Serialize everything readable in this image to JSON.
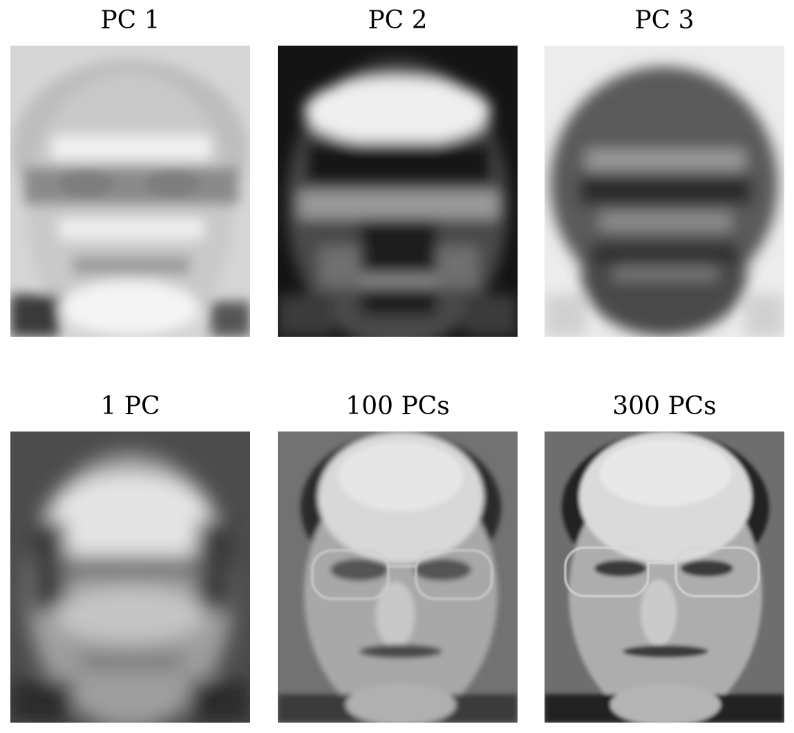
{
  "figure": {
    "panels": [
      {
        "title": "PC 1",
        "kind": "eigenface-1",
        "palette": {
          "bg": "#d8d8d8",
          "face": "#cfcfcf",
          "dark": "#7a7a7a",
          "light": "#f2f2f2"
        }
      },
      {
        "title": "PC 2",
        "kind": "eigenface-2",
        "palette": {
          "bg": "#0e0e0e",
          "face": "#3a3a3a",
          "dark": "#151515",
          "light": "#f0f0f0"
        }
      },
      {
        "title": "PC 3",
        "kind": "eigenface-3",
        "palette": {
          "bg": "#e8e8e8",
          "face": "#555555",
          "dark": "#2c2c2c",
          "light": "#9a9a9a"
        }
      },
      {
        "title": "1 PC",
        "kind": "recon-1",
        "palette": {
          "bg": "#4a4a4a",
          "face": "#a9a9a9",
          "dark": "#2e2e2e",
          "light": "#e2e2e2"
        }
      },
      {
        "title": "100 PCs",
        "kind": "recon-100",
        "palette": {
          "bg": "#707070",
          "face": "#b8b8b8",
          "dark": "#2a2a2a",
          "light": "#e6e6e6"
        }
      },
      {
        "title": "300 PCs",
        "kind": "recon-300",
        "palette": {
          "bg": "#6c6c6c",
          "face": "#bdbdbd",
          "dark": "#232323",
          "light": "#e8e8e8"
        }
      }
    ]
  }
}
